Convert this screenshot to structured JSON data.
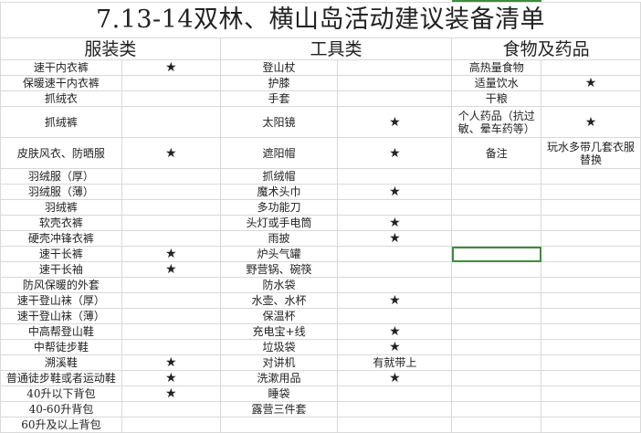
{
  "title": "7.13-14双林、横山岛活动建议装备清单",
  "headers": {
    "clothing": "服装类",
    "tools": "工具类",
    "food": "食物及药品"
  },
  "accent_color": "#3c8c3c",
  "star_symbol": "★",
  "rows": [
    {
      "c1": "速干内衣裤",
      "c1s": "★",
      "c2": "登山杖",
      "c2s": "",
      "c3": "高热量食物",
      "c3s": ""
    },
    {
      "c1": "保暖速干内衣裤",
      "c1s": "",
      "c2": "护膝",
      "c2s": "",
      "c3": "适量饮水",
      "c3s": "★"
    },
    {
      "c1": "抓绒衣",
      "c1s": "",
      "c2": "手套",
      "c2s": "",
      "c3": "干粮",
      "c3s": ""
    },
    {
      "c1": "抓绒裤",
      "c1s": "",
      "c2": "太阳镜",
      "c2s": "★",
      "c3": "个人药品（抗过敏、晕车药等）",
      "c3s": "★"
    },
    {
      "c1": "皮肤风衣、防晒服",
      "c1s": "★",
      "c2": "遮阳帽",
      "c2s": "★",
      "c3": "备注",
      "c3s": "玩水多带几套衣服替换"
    },
    {
      "c1": "羽绒服（厚）",
      "c1s": "",
      "c2": "抓绒帽",
      "c2s": "",
      "c3": "",
      "c3s": ""
    },
    {
      "c1": "羽绒服（薄）",
      "c1s": "",
      "c2": "魔术头巾",
      "c2s": "★",
      "c3": "",
      "c3s": ""
    },
    {
      "c1": "羽绒裤",
      "c1s": "",
      "c2": "多功能刀",
      "c2s": "",
      "c3": "",
      "c3s": ""
    },
    {
      "c1": "软壳衣裤",
      "c1s": "",
      "c2": "头灯或手电筒",
      "c2s": "★",
      "c3": "",
      "c3s": ""
    },
    {
      "c1": "硬壳冲锋衣裤",
      "c1s": "",
      "c2": "雨披",
      "c2s": "★",
      "c3": "",
      "c3s": ""
    },
    {
      "c1": "速干长裤",
      "c1s": "★",
      "c2": "炉头气罐",
      "c2s": "",
      "c3": "",
      "c3s": ""
    },
    {
      "c1": "速干长袖",
      "c1s": "★",
      "c2": "野营锅、碗筷",
      "c2s": "",
      "c3": "",
      "c3s": ""
    },
    {
      "c1": "防风保暖的外套",
      "c1s": "",
      "c2": "防水袋",
      "c2s": "",
      "c3": "",
      "c3s": ""
    },
    {
      "c1": "速干登山袜（厚）",
      "c1s": "",
      "c2": "水壶、水杯",
      "c2s": "★",
      "c3": "",
      "c3s": ""
    },
    {
      "c1": "速干登山袜（薄）",
      "c1s": "",
      "c2": "保温杯",
      "c2s": "",
      "c3": "",
      "c3s": ""
    },
    {
      "c1": "中高帮登山鞋",
      "c1s": "",
      "c2": "充电宝+线",
      "c2s": "★",
      "c3": "",
      "c3s": ""
    },
    {
      "c1": "中帮徒步鞋",
      "c1s": "",
      "c2": "垃圾袋",
      "c2s": "★",
      "c3": "",
      "c3s": ""
    },
    {
      "c1": "溯溪鞋",
      "c1s": "★",
      "c2": "对讲机",
      "c2s": "有就带上",
      "c3": "",
      "c3s": ""
    },
    {
      "c1": "普通徒步鞋或者运动鞋",
      "c1s": "★",
      "c2": "洗漱用品",
      "c2s": "★",
      "c3": "",
      "c3s": ""
    },
    {
      "c1": "40升以下背包",
      "c1s": "★",
      "c2": "睡袋",
      "c2s": "",
      "c3": "",
      "c3s": ""
    },
    {
      "c1": "40-60升背包",
      "c1s": "",
      "c2": "露营三件套",
      "c2s": "",
      "c3": "",
      "c3s": ""
    },
    {
      "c1": "60升及以上背包",
      "c1s": "",
      "c2": "",
      "c2s": "",
      "c3": "",
      "c3s": ""
    }
  ]
}
